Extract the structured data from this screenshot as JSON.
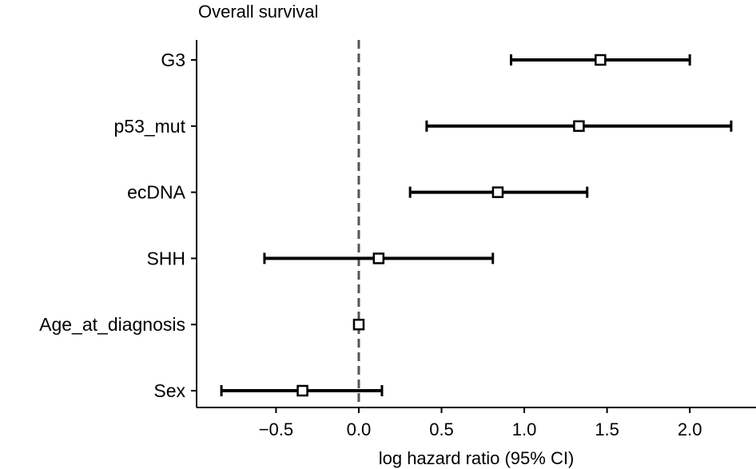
{
  "chart_data": {
    "type": "forest",
    "title": "Overall survival",
    "xlabel": "log hazard ratio (95% CI)",
    "ylabel": "",
    "xlim": [
      -0.98,
      2.4
    ],
    "xticks": [
      -0.5,
      0.0,
      0.5,
      1.0,
      1.5,
      2.0
    ],
    "xtick_labels": [
      "−0.5",
      "0.0",
      "0.5",
      "1.0",
      "1.5",
      "2.0"
    ],
    "reference_line": 0.0,
    "grid": false,
    "categories": [
      "G3",
      "p53_mut",
      "ecDNA",
      "SHH",
      "Age_at_diagnosis",
      "Sex"
    ],
    "estimates": [
      1.46,
      1.33,
      0.84,
      0.12,
      0.0,
      -0.34
    ],
    "ci_lower": [
      0.92,
      0.41,
      0.31,
      -0.57,
      0.0,
      -0.83
    ],
    "ci_upper": [
      2.0,
      2.25,
      1.38,
      0.81,
      0.0,
      0.14
    ]
  }
}
